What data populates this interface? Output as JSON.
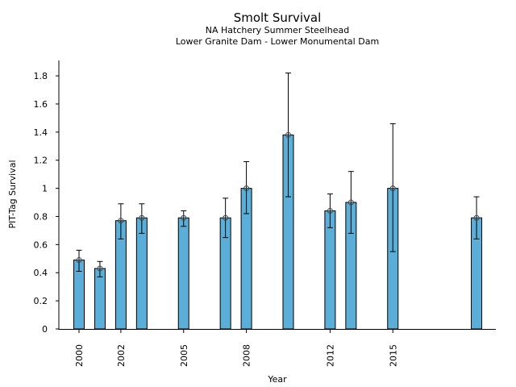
{
  "chart_data": {
    "type": "bar",
    "title": "Smolt Survival",
    "subtitle": "NA Hatchery Summer Steelhead",
    "subtitle2": "Lower Granite Dam - Lower Monumental Dam",
    "xlabel": "Year",
    "ylabel": "PIT-Tag Survival",
    "ylim": [
      0,
      1.9
    ],
    "xlim": [
      1998.9,
      2020.3
    ],
    "yticks": [
      0,
      0.2,
      0.4,
      0.6,
      0.8,
      1,
      1.2,
      1.4,
      1.6,
      1.8
    ],
    "ytick_labels": [
      "0",
      "0.2",
      "0.4",
      "0.6",
      "0.8",
      "1",
      "1.2",
      "1.4",
      "1.6",
      "1.8"
    ],
    "xticks": [
      2000,
      2002,
      2005,
      2008,
      2012,
      2015
    ],
    "xtick_labels": [
      "2000",
      "2002",
      "2005",
      "2008",
      "2012",
      "2015"
    ],
    "bar_color": "#5aaed8",
    "edge_color": "#000000",
    "grid": false,
    "series": [
      {
        "name": "PIT-Tag Survival",
        "x": [
          2000,
          2001,
          2002,
          2003,
          2005,
          2007,
          2008,
          2010,
          2012,
          2013,
          2015,
          2019
        ],
        "values": [
          0.49,
          0.43,
          0.77,
          0.79,
          0.79,
          0.79,
          1.0,
          1.38,
          0.84,
          0.9,
          1.0,
          0.79
        ],
        "err_low": [
          0.41,
          0.37,
          0.64,
          0.68,
          0.73,
          0.65,
          0.82,
          0.94,
          0.72,
          0.68,
          0.55,
          0.64
        ],
        "err_high": [
          0.56,
          0.48,
          0.89,
          0.89,
          0.84,
          0.93,
          1.19,
          1.82,
          0.96,
          1.12,
          1.46,
          0.94
        ]
      }
    ]
  }
}
